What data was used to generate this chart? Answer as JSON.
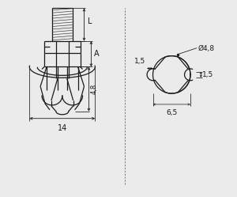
{
  "bg_color": "#ebebeb",
  "line_color": "#1a1a1a",
  "fig_width": 3.0,
  "fig_height": 2.49,
  "dpi": 100,
  "labels": {
    "L": "L",
    "A": "A",
    "d1": "4,8",
    "d2": "14",
    "phi": "Ø4,8",
    "dim1": "1,5",
    "dim2": "1,5",
    "dim3": "6,5"
  }
}
